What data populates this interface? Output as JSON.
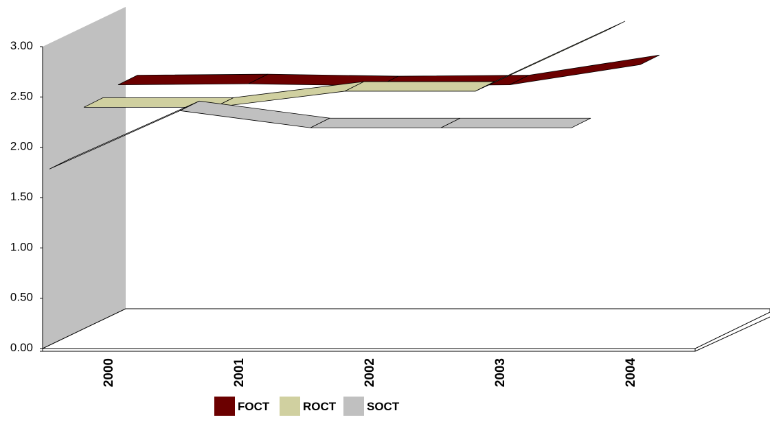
{
  "chart_data": {
    "type": "line",
    "style": "3d-ribbon",
    "categories": [
      "2000",
      "2001",
      "2002",
      "2003",
      "2004"
    ],
    "series": [
      {
        "name": "FOCT",
        "values": [
          2.13,
          2.14,
          2.12,
          2.13,
          2.33
        ],
        "color": "#6b0000"
      },
      {
        "name": "ROCT",
        "values": [
          2.07,
          2.07,
          2.23,
          2.23,
          2.83
        ],
        "color": "#d0d0a0"
      },
      {
        "name": "SOCT",
        "values": [
          1.62,
          2.2,
          2.03,
          2.03,
          2.03
        ],
        "color": "#c0c0c0"
      }
    ],
    "ylim": [
      0,
      3.0
    ],
    "yticks": [
      "0.00",
      "0.50",
      "1.00",
      "1.50",
      "2.00",
      "2.50",
      "3.00"
    ],
    "legend_position": "bottom",
    "grid": false,
    "wall_color": "#c0c0c0"
  }
}
